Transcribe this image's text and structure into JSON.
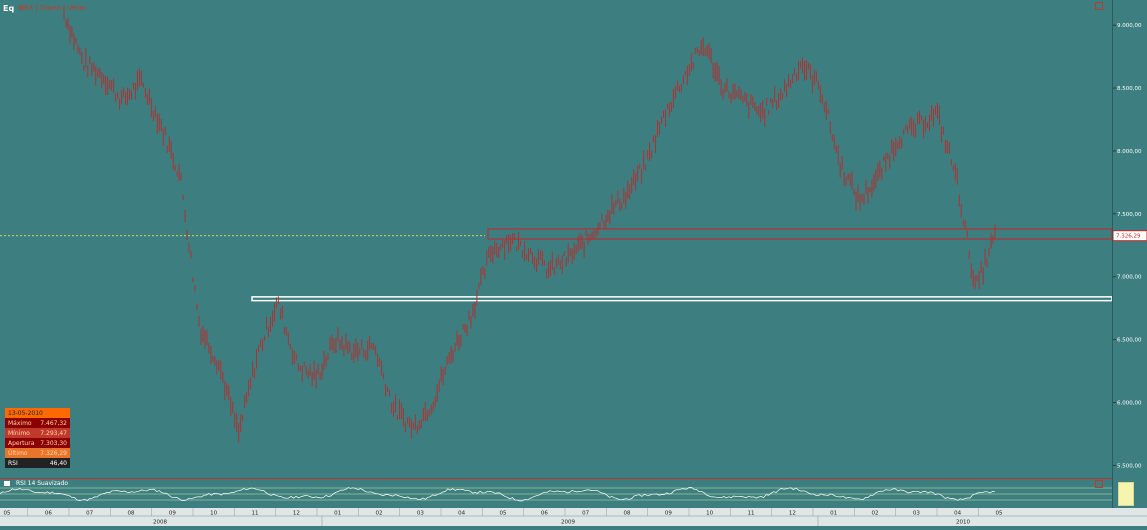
{
  "window": {
    "eq_icon": "Eq",
    "title": "IBEX | Diario | Velas"
  },
  "info_box": {
    "date": "13-05-2010",
    "rows": [
      {
        "label": "Máximo",
        "value": "7.467,32"
      },
      {
        "label": "Mínimo",
        "value": "7.293,47"
      },
      {
        "label": "Apertura",
        "value": "7.303,30"
      },
      {
        "label": "Último",
        "value": "7.326,29"
      }
    ],
    "rsi_label": "RSI",
    "rsi_value": "46,40"
  },
  "rsi_panel": {
    "label": "RSI 14 Suavizado"
  },
  "current_price_tag": "7.326,29",
  "colors": {
    "background": "#3d7f80",
    "candles": "#b03030",
    "rsi_line": "#ffffff",
    "current_line": "#e8e060",
    "resistance_zone": "#cc2222",
    "support_zone": "#ffffff"
  },
  "chart_data": {
    "type": "bar",
    "title": "IBEX",
    "y_axis": {
      "ticks": [
        9000,
        8500,
        8000,
        7500,
        7000,
        6500,
        6000,
        5500
      ],
      "tick_labels": [
        "9.000,00",
        "8.500,00",
        "8.000,00",
        "7.500,00",
        "7.000,00",
        "6.500,00",
        "6.000,00",
        "5.500,00"
      ],
      "range": [
        5400,
        9200
      ]
    },
    "x_axis": {
      "month_labels": [
        "05",
        "06",
        "07",
        "08",
        "09",
        "10",
        "11",
        "12",
        "01",
        "02",
        "03",
        "04",
        "05",
        "06",
        "07",
        "08",
        "09",
        "10",
        "11",
        "12",
        "01",
        "02",
        "03",
        "04",
        "05"
      ],
      "year_labels": [
        "2008",
        "2009",
        "2010"
      ]
    },
    "price_path": [
      [
        0,
        9100
      ],
      [
        1,
        8700
      ],
      [
        2,
        8600
      ],
      [
        3,
        8400
      ],
      [
        4,
        8550
      ],
      [
        5,
        8200
      ],
      [
        6,
        7800
      ],
      [
        7,
        6600
      ],
      [
        8,
        6300
      ],
      [
        9,
        5750
      ],
      [
        10,
        6400
      ],
      [
        11,
        6800
      ],
      [
        12,
        6300
      ],
      [
        13,
        6200
      ],
      [
        14,
        6500
      ],
      [
        15,
        6400
      ],
      [
        16,
        6450
      ],
      [
        17,
        5950
      ],
      [
        18,
        5800
      ],
      [
        19,
        6000
      ],
      [
        20,
        6400
      ],
      [
        21,
        6700
      ],
      [
        22,
        7200
      ],
      [
        23,
        7300
      ],
      [
        24,
        7200
      ],
      [
        25,
        7050
      ],
      [
        26,
        7150
      ],
      [
        27,
        7300
      ],
      [
        28,
        7500
      ],
      [
        29,
        7650
      ],
      [
        30,
        7900
      ],
      [
        31,
        8300
      ],
      [
        32,
        8600
      ],
      [
        33,
        8850
      ],
      [
        34,
        8500
      ],
      [
        35,
        8400
      ],
      [
        36,
        8300
      ],
      [
        37,
        8450
      ],
      [
        38,
        8700
      ],
      [
        39,
        8500
      ],
      [
        40,
        7900
      ],
      [
        41,
        7600
      ],
      [
        42,
        7800
      ],
      [
        43,
        8100
      ],
      [
        44,
        8200
      ],
      [
        45,
        8300
      ],
      [
        46,
        7800
      ],
      [
        47,
        6900
      ],
      [
        48,
        7326
      ]
    ],
    "current_price": 7326.29,
    "resistance_zone": [
      7300,
      7380
    ],
    "support_zone": [
      6810,
      6840
    ],
    "rsi": {
      "name": "RSI 14 Suavizado",
      "levels": [
        30,
        50,
        70
      ]
    }
  }
}
